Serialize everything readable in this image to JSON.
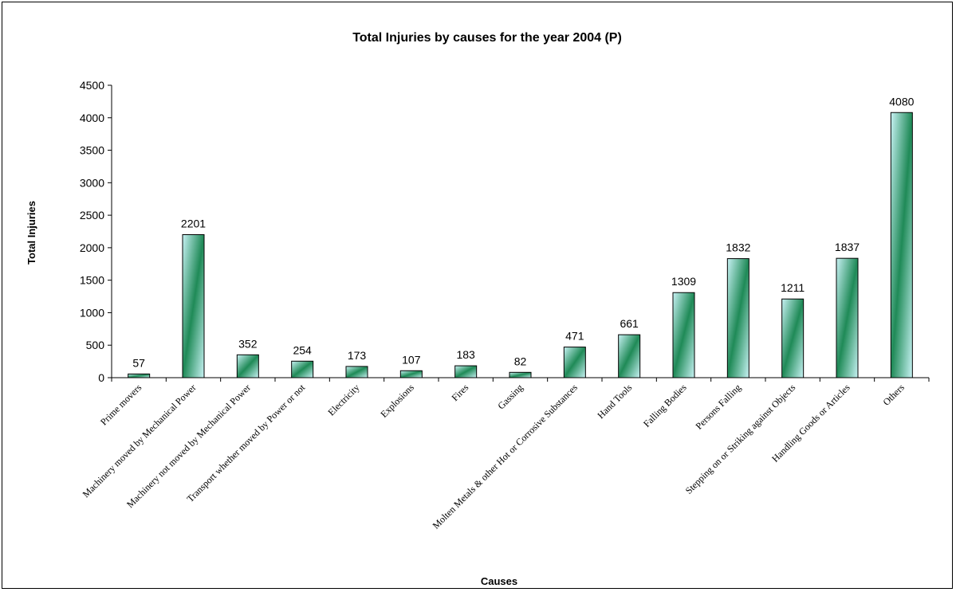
{
  "chart_data": {
    "type": "bar",
    "title": "Total Injuries by causes for the year 2004 (P)",
    "xlabel": "Causes",
    "ylabel": "Total Injuries",
    "ylim": [
      0,
      4500
    ],
    "yticks": [
      0,
      500,
      1000,
      1500,
      2000,
      2500,
      3000,
      3500,
      4000,
      4500
    ],
    "grid": false,
    "legend": "none",
    "categories": [
      "Prime movers",
      "Machinery moved by Mechanical Power",
      "Machinery not moved by Mechanical Power",
      "Transport whether moved by Power or not",
      "Electricity",
      "Explosions",
      "Fires",
      "Gassing",
      "Molten Metals & other Hot or Corrosive Substances",
      "Hand Tools",
      "Falling Bodies",
      "Persons Falling",
      "Stepping on or Striking against Objects",
      "Handling Goods or Articles",
      "Others"
    ],
    "values": [
      57,
      2201,
      352,
      254,
      173,
      107,
      183,
      82,
      471,
      661,
      1309,
      1832,
      1211,
      1837,
      4080
    ],
    "colors": {
      "bar_light": "#c8f2f4",
      "bar_dark": "#1f8a57",
      "outline": "#000000"
    }
  }
}
